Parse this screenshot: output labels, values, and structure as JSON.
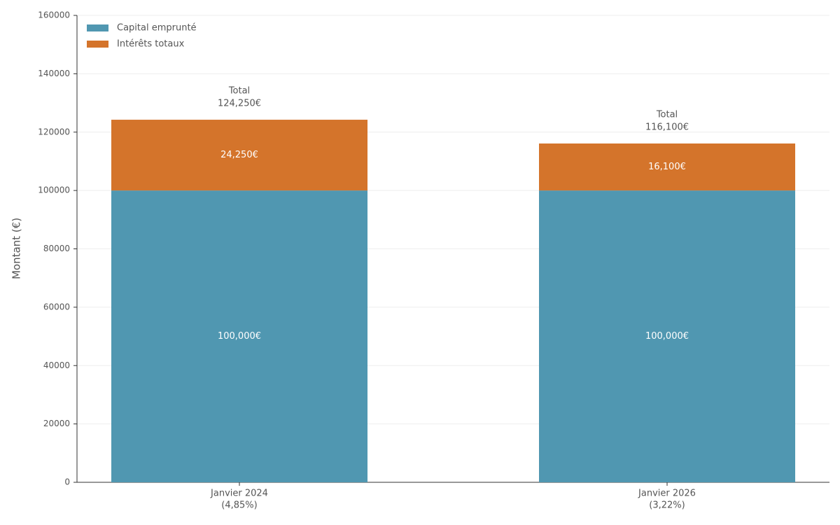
{
  "chart_data": {
    "type": "stacked_bar",
    "categories": [
      "Janvier 2024",
      "Janvier 2026"
    ],
    "category_notes": [
      "(4,85%)",
      "(3,22%)"
    ],
    "series": [
      {
        "name": "Capital emprunté",
        "color": "#5097b1",
        "values": [
          100000,
          100000
        ],
        "value_labels": [
          "100,000€",
          "100,000€"
        ]
      },
      {
        "name": "Intérêts totaux",
        "color": "#d4742b",
        "values": [
          24250,
          16100
        ],
        "value_labels": [
          "24,250€",
          "16,100€"
        ]
      }
    ],
    "total_title": "Total",
    "totals": [
      124250,
      116100
    ],
    "total_labels": [
      "124,250€",
      "116,100€"
    ],
    "y_label": "Montant (€)",
    "ylim": [
      0,
      160000
    ],
    "yticks": [
      0,
      20000,
      40000,
      60000,
      80000,
      100000,
      120000,
      140000,
      160000
    ],
    "grid": true,
    "legend": "top-left"
  }
}
